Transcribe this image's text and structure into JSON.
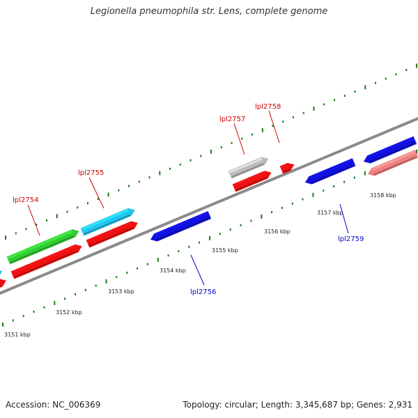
{
  "title": "Legionella pneumophila str. Lens, complete genome",
  "footer": {
    "accession": "Accession: NC_006369",
    "summary": "Topology: circular; Length: 3,345,687 bp; Genes: 2,931"
  },
  "colors": {
    "backbone": "#8a8a8a",
    "tick": "#1a7a1a",
    "label_forward": "#cc0000",
    "label_reverse": "#0000cc",
    "red": "#ee1111",
    "green": "#33cc33",
    "cyan": "#22c4ee",
    "blue": "#1111dd",
    "grey": "#bbbbbb",
    "pink": "#ee8080"
  },
  "scale_labels": [
    "3151 kbp",
    "3152 kbp",
    "3153 kbp",
    "3154 kbp",
    "3155 kbp",
    "3156 kbp",
    "3157 kbp",
    "3158 kbp"
  ],
  "gene_labels": [
    {
      "text": "lpl2754",
      "strand": "forward"
    },
    {
      "text": "lpl2755",
      "strand": "forward"
    },
    {
      "text": "lpl2756",
      "strand": "reverse"
    },
    {
      "text": "lpl2757",
      "strand": "forward"
    },
    {
      "text": "lpl2758",
      "strand": "forward"
    },
    {
      "text": "lpl2759",
      "strand": "reverse"
    }
  ]
}
